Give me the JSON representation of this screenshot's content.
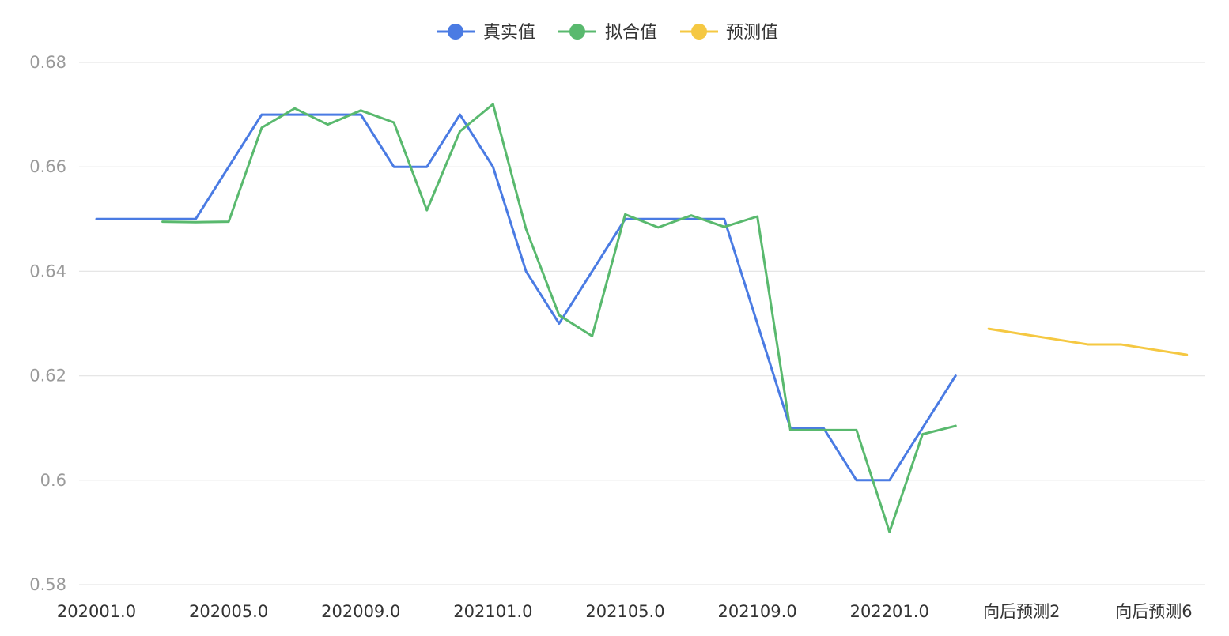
{
  "chart_data": {
    "type": "line",
    "title": "",
    "xlabel": "",
    "ylabel": "",
    "ylim": [
      0.58,
      0.68
    ],
    "yticks": [
      "0.58",
      "0.6",
      "0.62",
      "0.64",
      "0.66",
      "0.68"
    ],
    "grid": true,
    "legend_position": "top-center",
    "categories": [
      "202001.0",
      "202002.0",
      "202003.0",
      "202004.0",
      "202005.0",
      "202006.0",
      "202007.0",
      "202008.0",
      "202009.0",
      "202010.0",
      "202011.0",
      "202012.0",
      "202101.0",
      "202102.0",
      "202103.0",
      "202104.0",
      "202105.0",
      "202106.0",
      "202107.0",
      "202108.0",
      "202109.0",
      "202110.0",
      "202111.0",
      "202112.0",
      "202201.0",
      "202202.0",
      "202203.0",
      "向后预测1",
      "向后预测2",
      "向后预测3",
      "向后预测4",
      "向后预测5",
      "向后预测6",
      "向后预测7"
    ],
    "xtick_labels": [
      {
        "index": 0,
        "label": "202001.0"
      },
      {
        "index": 4,
        "label": "202005.0"
      },
      {
        "index": 8,
        "label": "202009.0"
      },
      {
        "index": 12,
        "label": "202101.0"
      },
      {
        "index": 16,
        "label": "202105.0"
      },
      {
        "index": 20,
        "label": "202109.0"
      },
      {
        "index": 24,
        "label": "202201.0"
      },
      {
        "index": 28,
        "label": "向后预测2"
      },
      {
        "index": 32,
        "label": "向后预测6"
      }
    ],
    "series": [
      {
        "name": "真实值",
        "color": "#4a7be3",
        "values": [
          0.65,
          0.65,
          0.65,
          0.65,
          0.66,
          0.67,
          0.67,
          0.67,
          0.67,
          0.66,
          0.66,
          0.67,
          0.66,
          0.64,
          0.63,
          0.64,
          0.65,
          0.65,
          0.65,
          0.65,
          0.63,
          0.61,
          0.61,
          0.6,
          0.6,
          0.61,
          0.62,
          null,
          null,
          null,
          null,
          null,
          null,
          null
        ]
      },
      {
        "name": "拟合值",
        "color": "#59b96e",
        "values": [
          null,
          null,
          0.6495,
          0.6494,
          0.6495,
          0.6675,
          0.6712,
          0.6681,
          0.6708,
          0.6685,
          0.6517,
          0.6668,
          0.672,
          0.6481,
          0.6316,
          0.6276,
          0.6509,
          0.6484,
          0.6507,
          0.6485,
          0.6505,
          0.6096,
          0.6096,
          0.6096,
          0.5901,
          0.6088,
          0.6104,
          null,
          null,
          null,
          null,
          null,
          null,
          null
        ]
      },
      {
        "name": "预测值",
        "color": "#f5c842",
        "values": [
          null,
          null,
          null,
          null,
          null,
          null,
          null,
          null,
          null,
          null,
          null,
          null,
          null,
          null,
          null,
          null,
          null,
          null,
          null,
          null,
          null,
          null,
          null,
          null,
          null,
          null,
          null,
          0.629,
          0.628,
          0.627,
          0.626,
          0.626,
          0.625,
          0.624
        ]
      }
    ]
  }
}
